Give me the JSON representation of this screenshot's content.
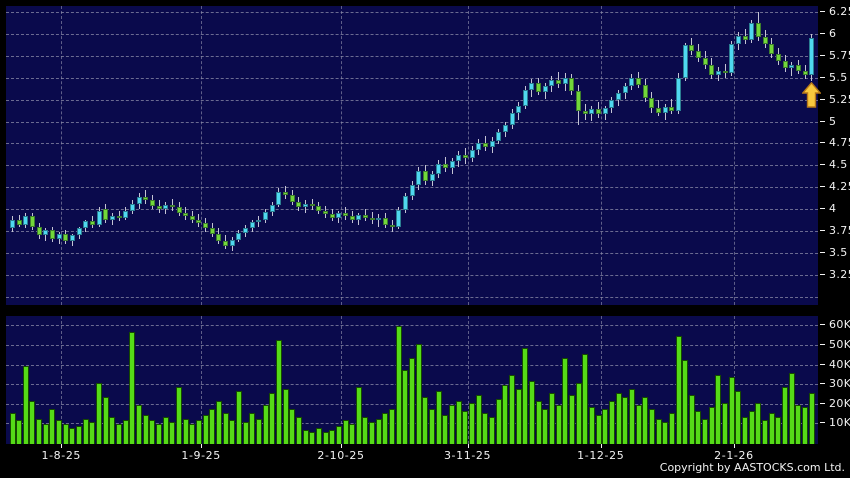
{
  "window": {
    "copyright": "Copyright by AASTOCKS.com Ltd."
  },
  "colors": {
    "background": "#000000",
    "panel_bg": "#0A0A4C",
    "grid": "#8C8CA8",
    "candle_up": "#4FD8F0",
    "candle_down": "#72D73A",
    "wick": "#C4C4D4",
    "volume_bar": "#55DB17",
    "axis_text": "#F2F2F2",
    "arrow_fill": "#F8C93E",
    "arrow_stroke": "#B87818"
  },
  "chart_data": {
    "type": "candlestick",
    "title": "",
    "grid": "dashed",
    "legend": "none",
    "price_axis": {
      "position": "right",
      "min": 3.25,
      "max": 6.25,
      "step": 0.25,
      "ticks": [
        "6.25",
        "6",
        "5.75",
        "5.5",
        "5.25",
        "5",
        "4.75",
        "4.5",
        "4.25",
        "4",
        "3.75",
        "3.5",
        "3.25"
      ]
    },
    "volume_axis": {
      "position": "right",
      "unit": "thousands",
      "ticks": [
        "60K",
        "50K",
        "40K",
        "30K",
        "20K",
        "10K"
      ]
    },
    "x_axis": {
      "labels": [
        {
          "text": "1-8-25",
          "index": 8
        },
        {
          "text": "1-9-25",
          "index": 29
        },
        {
          "text": "2-10-25",
          "index": 50
        },
        {
          "text": "3-11-25",
          "index": 69
        },
        {
          "text": "1-12-25",
          "index": 89
        },
        {
          "text": "2-1-26",
          "index": 109
        }
      ]
    },
    "series": {
      "name": "daily-ohlcv",
      "format": [
        "open",
        "high",
        "low",
        "close",
        "volume_thousands"
      ],
      "candles": [
        [
          3.78,
          3.92,
          3.74,
          3.88,
          16
        ],
        [
          3.88,
          3.93,
          3.8,
          3.82,
          12
        ],
        [
          3.82,
          3.95,
          3.78,
          3.92,
          40
        ],
        [
          3.92,
          3.96,
          3.76,
          3.8,
          22
        ],
        [
          3.8,
          3.84,
          3.66,
          3.7,
          13
        ],
        [
          3.7,
          3.78,
          3.64,
          3.76,
          10
        ],
        [
          3.76,
          3.8,
          3.62,
          3.66,
          18
        ],
        [
          3.66,
          3.74,
          3.6,
          3.72,
          12
        ],
        [
          3.72,
          3.76,
          3.6,
          3.64,
          10
        ],
        [
          3.64,
          3.72,
          3.58,
          3.7,
          8
        ],
        [
          3.7,
          3.8,
          3.66,
          3.78,
          9
        ],
        [
          3.78,
          3.88,
          3.74,
          3.86,
          13
        ],
        [
          3.86,
          3.92,
          3.78,
          3.82,
          11
        ],
        [
          3.82,
          4.02,
          3.8,
          3.98,
          31
        ],
        [
          4.0,
          4.06,
          3.84,
          3.88,
          24
        ],
        [
          3.88,
          3.96,
          3.82,
          3.92,
          14
        ],
        [
          3.92,
          3.98,
          3.86,
          3.9,
          10
        ],
        [
          3.9,
          4.02,
          3.88,
          3.98,
          12
        ],
        [
          3.98,
          4.1,
          3.94,
          4.06,
          57
        ],
        [
          4.06,
          4.18,
          4.0,
          4.14,
          20
        ],
        [
          4.14,
          4.22,
          4.06,
          4.1,
          15
        ],
        [
          4.1,
          4.16,
          4.0,
          4.04,
          12
        ],
        [
          4.04,
          4.1,
          3.96,
          4.0,
          10
        ],
        [
          4.0,
          4.08,
          3.94,
          4.05,
          14
        ],
        [
          4.05,
          4.12,
          3.98,
          4.02,
          11
        ],
        [
          4.02,
          4.08,
          3.92,
          3.96,
          29
        ],
        [
          3.96,
          4.02,
          3.88,
          3.92,
          13
        ],
        [
          3.92,
          3.98,
          3.84,
          3.88,
          10
        ],
        [
          3.88,
          3.94,
          3.8,
          3.84,
          12
        ],
        [
          3.84,
          3.9,
          3.74,
          3.78,
          15
        ],
        [
          3.78,
          3.84,
          3.68,
          3.72,
          18
        ],
        [
          3.72,
          3.78,
          3.6,
          3.64,
          22
        ],
        [
          3.64,
          3.7,
          3.54,
          3.58,
          16
        ],
        [
          3.58,
          3.68,
          3.52,
          3.65,
          12
        ],
        [
          3.65,
          3.76,
          3.62,
          3.73,
          27
        ],
        [
          3.73,
          3.82,
          3.68,
          3.78,
          11
        ],
        [
          3.78,
          3.88,
          3.74,
          3.85,
          16
        ],
        [
          3.85,
          3.92,
          3.8,
          3.88,
          13
        ],
        [
          3.88,
          4.0,
          3.84,
          3.97,
          20
        ],
        [
          3.97,
          4.08,
          3.92,
          4.05,
          26
        ],
        [
          4.05,
          4.24,
          4.02,
          4.2,
          53
        ],
        [
          4.2,
          4.26,
          4.12,
          4.16,
          28
        ],
        [
          4.16,
          4.22,
          4.05,
          4.08,
          18
        ],
        [
          4.08,
          4.14,
          3.98,
          4.02,
          14
        ],
        [
          4.02,
          4.1,
          3.96,
          4.06,
          7
        ],
        [
          4.06,
          4.12,
          3.99,
          4.03,
          6
        ],
        [
          4.03,
          4.08,
          3.94,
          3.98,
          8
        ],
        [
          3.98,
          4.04,
          3.9,
          3.94,
          6
        ],
        [
          3.94,
          4.0,
          3.86,
          3.9,
          7
        ],
        [
          3.9,
          3.98,
          3.84,
          3.95,
          9
        ],
        [
          3.95,
          4.02,
          3.88,
          3.92,
          12
        ],
        [
          3.92,
          3.98,
          3.84,
          3.88,
          10
        ],
        [
          3.88,
          3.96,
          3.82,
          3.93,
          29
        ],
        [
          3.93,
          4.0,
          3.86,
          3.9,
          14
        ],
        [
          3.9,
          3.97,
          3.83,
          3.87,
          11
        ],
        [
          3.87,
          3.94,
          3.8,
          3.9,
          13
        ],
        [
          3.9,
          3.95,
          3.78,
          3.82,
          16
        ],
        [
          3.82,
          3.88,
          3.74,
          3.79,
          18
        ],
        [
          3.79,
          4.02,
          3.77,
          3.99,
          60
        ],
        [
          3.99,
          4.18,
          3.96,
          4.15,
          38
        ],
        [
          4.15,
          4.32,
          4.1,
          4.28,
          44
        ],
        [
          4.28,
          4.48,
          4.22,
          4.44,
          51
        ],
        [
          4.44,
          4.5,
          4.28,
          4.32,
          24
        ],
        [
          4.32,
          4.44,
          4.26,
          4.4,
          18
        ],
        [
          4.4,
          4.56,
          4.36,
          4.52,
          27
        ],
        [
          4.52,
          4.6,
          4.42,
          4.47,
          15
        ],
        [
          4.47,
          4.58,
          4.4,
          4.55,
          20
        ],
        [
          4.55,
          4.66,
          4.48,
          4.62,
          22
        ],
        [
          4.62,
          4.7,
          4.52,
          4.58,
          17
        ],
        [
          4.58,
          4.72,
          4.54,
          4.68,
          21
        ],
        [
          4.68,
          4.8,
          4.62,
          4.76,
          25
        ],
        [
          4.76,
          4.84,
          4.66,
          4.71,
          16
        ],
        [
          4.71,
          4.82,
          4.64,
          4.78,
          14
        ],
        [
          4.78,
          4.92,
          4.74,
          4.88,
          23
        ],
        [
          4.88,
          5.0,
          4.82,
          4.96,
          30
        ],
        [
          4.96,
          5.14,
          4.92,
          5.1,
          35
        ],
        [
          5.1,
          5.22,
          5.02,
          5.18,
          28
        ],
        [
          5.18,
          5.4,
          5.14,
          5.36,
          49
        ],
        [
          5.36,
          5.48,
          5.28,
          5.44,
          32
        ],
        [
          5.44,
          5.5,
          5.3,
          5.34,
          22
        ],
        [
          5.34,
          5.44,
          5.26,
          5.4,
          18
        ],
        [
          5.4,
          5.52,
          5.34,
          5.47,
          26
        ],
        [
          5.47,
          5.56,
          5.38,
          5.43,
          20
        ],
        [
          5.43,
          5.55,
          5.35,
          5.5,
          44
        ],
        [
          5.5,
          5.54,
          5.3,
          5.35,
          25
        ],
        [
          5.35,
          5.42,
          4.96,
          5.12,
          31
        ],
        [
          5.12,
          5.2,
          5.02,
          5.08,
          46
        ],
        [
          5.08,
          5.18,
          5.0,
          5.14,
          19
        ],
        [
          5.14,
          5.22,
          5.04,
          5.09,
          15
        ],
        [
          5.09,
          5.18,
          5.02,
          5.15,
          18
        ],
        [
          5.15,
          5.28,
          5.1,
          5.24,
          22
        ],
        [
          5.24,
          5.36,
          5.18,
          5.32,
          26
        ],
        [
          5.32,
          5.44,
          5.26,
          5.4,
          24
        ],
        [
          5.4,
          5.54,
          5.36,
          5.5,
          28
        ],
        [
          5.5,
          5.56,
          5.38,
          5.42,
          20
        ],
        [
          5.42,
          5.48,
          5.22,
          5.27,
          24
        ],
        [
          5.27,
          5.34,
          5.1,
          5.15,
          18
        ],
        [
          5.15,
          5.24,
          5.06,
          5.1,
          13
        ],
        [
          5.1,
          5.2,
          5.02,
          5.17,
          11
        ],
        [
          5.17,
          5.26,
          5.08,
          5.12,
          16
        ],
        [
          5.12,
          5.55,
          5.08,
          5.5,
          55
        ],
        [
          5.5,
          5.9,
          5.46,
          5.87,
          43
        ],
        [
          5.87,
          5.95,
          5.76,
          5.8,
          25
        ],
        [
          5.8,
          5.88,
          5.68,
          5.72,
          17
        ],
        [
          5.72,
          5.8,
          5.6,
          5.65,
          13
        ],
        [
          5.65,
          5.72,
          5.48,
          5.53,
          19
        ],
        [
          5.53,
          5.62,
          5.46,
          5.58,
          35
        ],
        [
          5.58,
          5.66,
          5.5,
          5.55,
          21
        ],
        [
          5.55,
          5.92,
          5.52,
          5.88,
          34
        ],
        [
          5.88,
          6.02,
          5.82,
          5.98,
          27
        ],
        [
          5.98,
          6.06,
          5.88,
          5.93,
          14
        ],
        [
          5.93,
          6.16,
          5.9,
          6.12,
          17
        ],
        [
          6.12,
          6.25,
          5.92,
          5.97,
          21
        ],
        [
          5.97,
          6.04,
          5.84,
          5.88,
          12
        ],
        [
          5.88,
          5.95,
          5.72,
          5.77,
          16
        ],
        [
          5.77,
          5.84,
          5.64,
          5.69,
          14
        ],
        [
          5.69,
          5.76,
          5.56,
          5.61,
          29
        ],
        [
          5.61,
          5.68,
          5.52,
          5.64,
          36
        ],
        [
          5.64,
          5.7,
          5.54,
          5.58,
          20
        ],
        [
          5.58,
          5.64,
          5.48,
          5.53,
          19
        ],
        [
          5.53,
          6.0,
          5.46,
          5.95,
          26
        ]
      ]
    },
    "annotations": [
      {
        "type": "up-arrow",
        "index": 120,
        "price": 5.45
      }
    ]
  }
}
